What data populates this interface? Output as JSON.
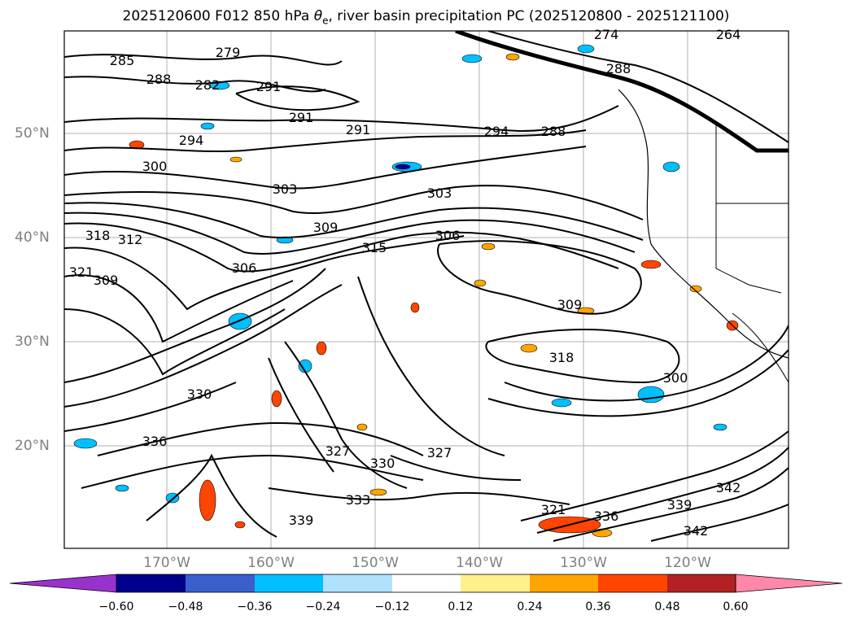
{
  "title": {
    "prefix": "2025120600 F012 850 hPa ",
    "theta": "θ",
    "theta_sub": "e",
    "suffix": ", river basin precipitation PC (2025120800 - 2025121100)"
  },
  "map": {
    "lat_labels": [
      "50°N",
      "40°N",
      "30°N",
      "20°N"
    ],
    "lon_labels": [
      "170°W",
      "160°W",
      "150°W",
      "140°W",
      "130°W",
      "120°W"
    ],
    "contour_labels": [
      "285",
      "288",
      "279",
      "282",
      "291",
      "291",
      "291",
      "294",
      "294",
      "288",
      "300",
      "303",
      "303",
      "309",
      "306",
      "315",
      "318",
      "321",
      "309",
      "312",
      "306",
      "309",
      "318",
      "300",
      "327",
      "330",
      "336",
      "327",
      "330",
      "333",
      "339",
      "342",
      "321",
      "336",
      "339",
      "342",
      "264",
      "274",
      "288"
    ]
  },
  "colorbar": {
    "ticks": [
      "−0.60",
      "−0.48",
      "−0.36",
      "−0.24",
      "−0.12",
      "0.12",
      "0.24",
      "0.36",
      "0.48",
      "0.60"
    ],
    "colors": [
      "#9932cc",
      "#00008b",
      "#3a5fcd",
      "#00bfff",
      "#b0e2ff",
      "#ffffff",
      "#fff08c",
      "#ffa500",
      "#ff4500",
      "#b22222",
      "#ff88aa"
    ]
  }
}
